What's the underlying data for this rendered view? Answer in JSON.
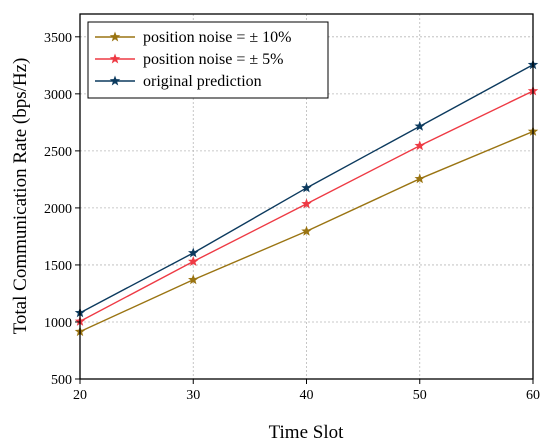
{
  "chart_data": {
    "type": "line",
    "xlabel": "Time Slot",
    "ylabel": "Total Communication Rate (bps/Hz)",
    "x": [
      20,
      30,
      40,
      50,
      60
    ],
    "xlim": [
      20,
      60
    ],
    "ylim": [
      500,
      3700
    ],
    "xticks": [
      20,
      30,
      40,
      50,
      60
    ],
    "yticks": [
      500,
      1000,
      1500,
      2000,
      2500,
      3000,
      3500
    ],
    "grid": true,
    "legend_position": "top-left",
    "marker": "star",
    "series": [
      {
        "name": "position noise = ± 10%",
        "color": "#9a7412",
        "values": [
          915,
          1370,
          1795,
          2255,
          2670
        ]
      },
      {
        "name": "position noise = ± 5%",
        "color": "#ee3a44",
        "values": [
          1005,
          1530,
          2035,
          2545,
          3025
        ]
      },
      {
        "name": "original prediction",
        "color": "#0c3a5e",
        "values": [
          1080,
          1605,
          2175,
          2715,
          3255
        ]
      }
    ]
  }
}
